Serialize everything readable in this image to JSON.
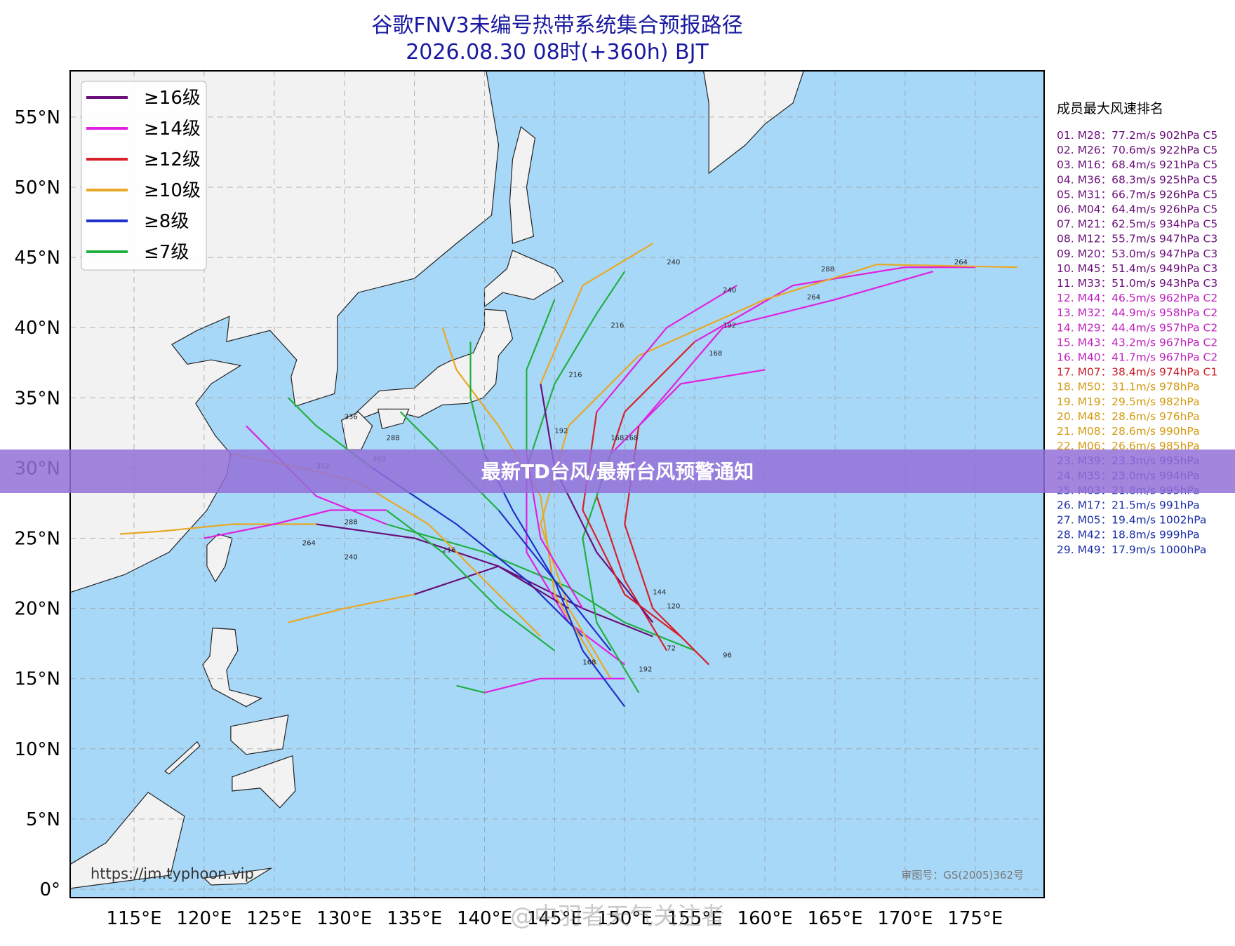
{
  "header": {
    "title": "谷歌FNV3未编号热带系统集合预报路径",
    "subtitle": "2026.08.30 08时(+360h) BJT"
  },
  "legend": [
    "≥16级",
    "≥14级",
    "≥12级",
    "≥10级",
    "≥8级",
    "≤7级"
  ],
  "lat_labels": [
    "55°N",
    "50°N",
    "45°N",
    "40°N",
    "35°N",
    "30°N",
    "25°N",
    "20°N",
    "15°N",
    "10°N",
    "5°N",
    "0°"
  ],
  "lon_labels": [
    "115°E",
    "120°E",
    "125°E",
    "130°E",
    "135°E",
    "140°E",
    "145°E",
    "150°E",
    "155°E",
    "160°E",
    "165°E",
    "170°E",
    "175°E"
  ],
  "ranking": {
    "title": "成员最大风速排名",
    "items": [
      "01. M28：77.2m/s 902hPa C5",
      "02. M26：70.6m/s 922hPa C5",
      "03. M16：68.4m/s 921hPa C5",
      "04. M36：68.3m/s 925hPa C5",
      "05. M31：66.7m/s 926hPa C5",
      "06. M04：64.4m/s 926hPa C5",
      "07. M21：62.5m/s 934hPa C5",
      "08. M12：55.7m/s 947hPa C3",
      "09. M20：53.0m/s 947hPa C3",
      "10. M45：51.4m/s 949hPa C3",
      "11. M33：51.0m/s 943hPa C3",
      "12. M44：46.5m/s 962hPa C2",
      "13. M32：44.9m/s 958hPa C2",
      "14. M29：44.4m/s 957hPa C2",
      "15. M43：43.2m/s 967hPa C2",
      "16. M40：41.7m/s 967hPa C2",
      "17. M07：38.4m/s 974hPa C1",
      "18. M50：31.1m/s 978hPa",
      "19. M19：29.5m/s 982hPa",
      "20. M48：28.6m/s 976hPa",
      "21. M08：28.6m/s 990hPa",
      "22. M06：26.6m/s 985hPa",
      "23. M39：23.3m/s 995hPa",
      "24. M35：23.0m/s 994hPa",
      "25. M03：21.8m/s 995hPa",
      "26. M17：21.5m/s 991hPa",
      "27. M05：19.4m/s 1002hPa",
      "28. M42：18.8m/s 999hPa",
      "29. M49：17.9m/s 1000hPa"
    ]
  },
  "track_labels": [
    "264",
    "288",
    "264",
    "240",
    "240",
    "192",
    "168",
    "216",
    "216",
    "192",
    "168",
    "288",
    "336",
    "360",
    "312",
    "288",
    "264",
    "240",
    "216",
    "168",
    "144",
    "120",
    "96",
    "72",
    "192",
    "168"
  ],
  "source": "https://jm.typhoon.vip",
  "approval": "审图号：GS(2005)362号",
  "banner": "最新TD台风/最新台风预警通知",
  "watermark": "@中羽者天气关注者"
}
